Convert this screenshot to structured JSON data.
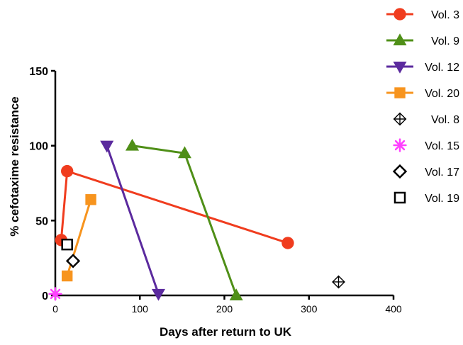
{
  "chart_data": {
    "type": "scatter",
    "title": "",
    "xlabel": "Days after return to UK",
    "ylabel": "% cefotaxime resistance",
    "xlim": [
      0,
      400
    ],
    "ylim": [
      0,
      150
    ],
    "xticks": [
      "0",
      "100",
      "200",
      "300",
      "400"
    ],
    "yticks": [
      "0",
      "50",
      "100",
      "150"
    ],
    "grid": false,
    "legend_position": "right",
    "series": [
      {
        "name": "Vol. 3",
        "marker": "circle",
        "color": "#f03c1e",
        "line": true,
        "points": [
          [
            7,
            37
          ],
          [
            14,
            83
          ],
          [
            275,
            35
          ]
        ]
      },
      {
        "name": "Vol. 9",
        "marker": "triangle-up",
        "color": "#4f8f17",
        "line": true,
        "points": [
          [
            91,
            100
          ],
          [
            153,
            95
          ],
          [
            214,
            0
          ]
        ]
      },
      {
        "name": "Vol. 12",
        "marker": "triangle-down",
        "color": "#5b2a9e",
        "line": true,
        "points": [
          [
            61,
            100
          ],
          [
            122,
            1
          ]
        ]
      },
      {
        "name": "Vol. 20",
        "marker": "square",
        "color": "#f7941e",
        "line": true,
        "points": [
          [
            14,
            13
          ],
          [
            42,
            64
          ]
        ]
      },
      {
        "name": "Vol. 8",
        "marker": "diamond-plus",
        "color": "#000000",
        "line": false,
        "points": [
          [
            335,
            9
          ]
        ]
      },
      {
        "name": "Vol. 15",
        "marker": "asterisk",
        "color": "#ff40ff",
        "line": false,
        "points": [
          [
            0,
            1
          ]
        ]
      },
      {
        "name": "Vol. 17",
        "marker": "diamond-open",
        "color": "#000000",
        "line": false,
        "points": [
          [
            21,
            23
          ]
        ]
      },
      {
        "name": "Vol. 19",
        "marker": "square-open",
        "color": "#000000",
        "line": false,
        "points": [
          [
            14,
            34
          ]
        ]
      }
    ]
  }
}
